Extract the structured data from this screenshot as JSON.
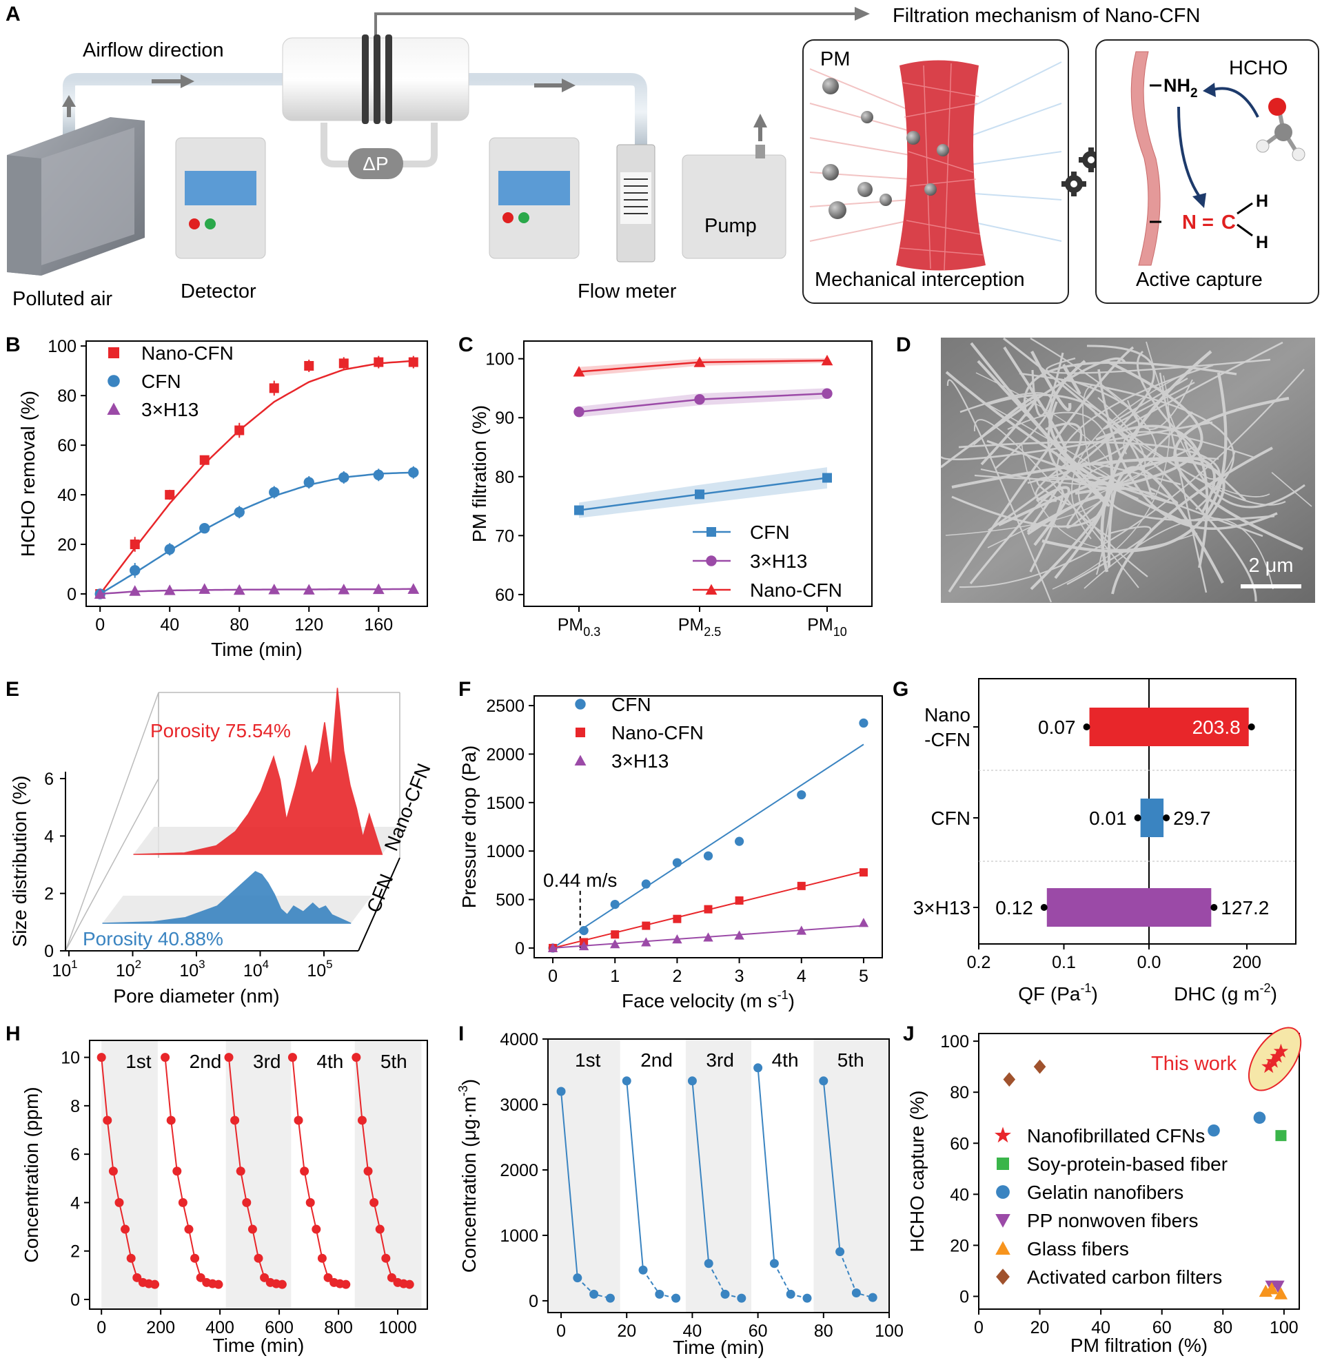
{
  "panels": {
    "A": {
      "label": "A",
      "airflow": "Airflow direction",
      "polluted_air": "Polluted air",
      "detector": "Detector",
      "flow_meter": "Flow meter",
      "pump": "Pump",
      "dp": "ΔP",
      "mechanism_title": "Filtration mechanism of Nano-CFN",
      "pm": "PM",
      "mechanical": "Mechanical interception",
      "active": "Active capture",
      "hcho": "HCHO",
      "nh2": "NH",
      "nh2_sub": "2",
      "n_atom": "N",
      "eq": "=",
      "c_atom": "C",
      "h1": "H",
      "h2": "H"
    },
    "D": {
      "label": "D",
      "scale_bar": "2 μm"
    }
  },
  "colors": {
    "red": "#e8262a",
    "blue": "#3a84c1",
    "purple": "#9b4aa7",
    "green": "#3ab54a",
    "orange": "#f7941d",
    "brown": "#a0522d",
    "grey_band": "#efefef"
  },
  "chart_data": [
    {
      "panel": "B",
      "type": "line",
      "xlabel": "Time (min)",
      "ylabel": "HCHO removal (%)",
      "xlim": [
        -8,
        188
      ],
      "ylim": [
        -5,
        102
      ],
      "xticks": [
        0,
        40,
        80,
        120,
        160
      ],
      "yticks": [
        0,
        20,
        40,
        60,
        80,
        100
      ],
      "series": [
        {
          "name": "Nano-CFN",
          "marker": "square",
          "x": [
            0,
            20,
            40,
            60,
            80,
            100,
            120,
            140,
            160,
            180
          ],
          "y": [
            0,
            20,
            40,
            54,
            66,
            83,
            92,
            93,
            93.5,
            93.5
          ],
          "err": [
            0,
            3,
            2,
            1.5,
            3,
            3,
            2.5,
            2.5,
            2.5,
            2.5
          ],
          "fit": [
            0,
            18.5,
            36.5,
            52.5,
            66,
            77.5,
            85.5,
            90.5,
            93,
            94
          ]
        },
        {
          "name": "CFN",
          "marker": "circle",
          "x": [
            0,
            20,
            40,
            60,
            80,
            100,
            120,
            140,
            160,
            180
          ],
          "y": [
            0,
            9.5,
            18,
            26.5,
            33,
            41,
            45,
            47,
            48,
            49
          ],
          "err": [
            0,
            3,
            2.5,
            1.5,
            2.5,
            2.5,
            2.5,
            2.5,
            2.5,
            2.5
          ],
          "fit": [
            0,
            8.5,
            17.5,
            26,
            33.5,
            39.5,
            44,
            47,
            48.5,
            49
          ]
        },
        {
          "name": "3×H13",
          "marker": "triangle",
          "x": [
            0,
            20,
            40,
            60,
            80,
            100,
            120,
            140,
            160,
            180
          ],
          "y": [
            0,
            1.2,
            1.5,
            2,
            1.6,
            1.8,
            1.7,
            1.8,
            1.9,
            2
          ],
          "err": [
            0,
            0,
            0,
            0,
            0,
            0,
            0,
            0,
            0,
            0
          ],
          "fit": [
            0,
            1,
            1.4,
            1.6,
            1.7,
            1.8,
            1.8,
            1.9,
            1.9,
            2
          ]
        }
      ]
    },
    {
      "panel": "C",
      "type": "line",
      "xlabel": "",
      "ylabel": "PM filtration (%)",
      "categories": [
        "PM",
        "PM",
        "PM"
      ],
      "category_subs": [
        "0.3",
        "2.5",
        "10"
      ],
      "ylim": [
        58,
        103
      ],
      "yticks": [
        60,
        70,
        80,
        90,
        100
      ],
      "legend": "bottom-right",
      "series": [
        {
          "name": "CFN",
          "marker": "square",
          "values": [
            74.3,
            77,
            79.8
          ],
          "band": [
            1.3,
            1.6,
            1.8
          ]
        },
        {
          "name": "3×H13",
          "marker": "circle",
          "values": [
            91,
            93.1,
            94.1
          ],
          "band": [
            0.9,
            1,
            0.9
          ]
        },
        {
          "name": "Nano-CFN",
          "marker": "triangle",
          "values": [
            97.8,
            99.4,
            99.7
          ],
          "band": [
            0.8,
            0.6,
            0.4
          ]
        }
      ]
    },
    {
      "panel": "E",
      "type": "area",
      "xlabel": "Pore diameter (nm)",
      "ylabel": "Size distribution (%)",
      "xticks": [
        "10",
        "10",
        "10",
        "10",
        "10"
      ],
      "xtick_exps": [
        "1",
        "2",
        "3",
        "4",
        "5"
      ],
      "yticks": [
        0,
        2,
        4,
        6
      ],
      "series": [
        {
          "name": "CFN",
          "annotation": "Porosity 40.88%",
          "log_x": [
            1.2,
            2,
            2.5,
            3,
            3.3,
            3.5,
            3.6,
            3.7,
            3.8,
            3.9,
            4,
            4.1,
            4.2,
            4.35,
            4.5,
            4.6,
            4.7,
            4.8,
            4.9,
            5.1
          ],
          "y": [
            0,
            0.05,
            0.2,
            0.6,
            1.2,
            1.6,
            1.8,
            1.7,
            1.4,
            1.0,
            0.5,
            0.3,
            0.6,
            0.4,
            0.7,
            0.5,
            0.6,
            0.3,
            0.2,
            0
          ]
        },
        {
          "name": "Nano-CFN",
          "annotation": "Porosity 75.54%",
          "log_x": [
            1.2,
            2,
            2.5,
            2.8,
            3,
            3.2,
            3.4,
            3.5,
            3.6,
            3.75,
            3.9,
            4,
            4.1,
            4.2,
            4.3,
            4.4,
            4.5,
            4.6,
            4.7,
            4.8,
            4.9,
            5.1
          ],
          "y": [
            0,
            0.05,
            0.3,
            0.8,
            1.4,
            2.2,
            3.4,
            2.6,
            1.2,
            2.4,
            3.8,
            2.8,
            3.2,
            4.6,
            3.0,
            5.8,
            3.6,
            2.4,
            1.6,
            0.6,
            1.4,
            0
          ]
        }
      ]
    },
    {
      "panel": "F",
      "type": "scatter",
      "xlabel": "Face velocity (m s",
      "xlabel_sup": "-1",
      "xlabel_end": ")",
      "ylabel": "Pressure drop (Pa)",
      "xlim": [
        -0.3,
        5.3
      ],
      "ylim": [
        -100,
        2600
      ],
      "xticks": [
        0,
        1,
        2,
        3,
        4,
        5
      ],
      "yticks": [
        0,
        500,
        1000,
        1500,
        2000,
        2500
      ],
      "annotation": "0.44 m/s",
      "vline_x": 0.44,
      "series": [
        {
          "name": "CFN",
          "marker": "circle",
          "x": [
            0,
            0.5,
            1,
            1.5,
            2,
            2.5,
            3,
            4,
            5
          ],
          "y": [
            0,
            180,
            450,
            660,
            880,
            950,
            1100,
            1580,
            2320
          ],
          "fit_slope": 420
        },
        {
          "name": "Nano-CFN",
          "marker": "square",
          "x": [
            0,
            0.5,
            1,
            1.5,
            2,
            2.5,
            3,
            4,
            5
          ],
          "y": [
            0,
            60,
            140,
            230,
            300,
            400,
            490,
            640,
            780
          ],
          "fit_slope": 158
        },
        {
          "name": "3×H13",
          "marker": "triangle",
          "x": [
            0,
            0.5,
            1,
            1.5,
            2,
            2.5,
            3,
            4,
            5
          ],
          "y": [
            0,
            20,
            40,
            60,
            90,
            110,
            130,
            180,
            260
          ],
          "fit_slope": 46
        }
      ]
    },
    {
      "panel": "G",
      "type": "bar",
      "categories": [
        "Nano\n-CFN",
        "CFN",
        "3×H13"
      ],
      "category_lines": [
        [
          "Nano",
          "-CFN"
        ],
        [
          "CFN"
        ],
        [
          "3×H13"
        ]
      ],
      "qf": [
        0.07,
        0.01,
        0.12
      ],
      "qf_labels": [
        "0.07",
        "0.01",
        "0.12"
      ],
      "dhc": [
        203.8,
        29.7,
        127.2
      ],
      "dhc_labels": [
        "203.8",
        "29.7",
        "127.2"
      ],
      "xlabel_left": "QF (Pa",
      "xlabel_left_sup": "-1",
      "xlabel_left_end": ")",
      "xlabel_right": "DHC (g m",
      "xlabel_right_sup": "-2",
      "xlabel_right_end": ")",
      "xticks_left": [
        "0.2",
        "0.1",
        "0.0"
      ],
      "xticks_left_vals": [
        0.2,
        0.1,
        0.0
      ],
      "xticks_right": [
        "200"
      ],
      "xticks_right_vals": [
        200
      ],
      "qf_max": 0.2,
      "dhc_max": 300
    },
    {
      "panel": "H",
      "type": "line",
      "xlabel": "Time (min)",
      "ylabel": "Concentration (ppm)",
      "xlim": [
        -40,
        1100
      ],
      "ylim": [
        -0.4,
        10.7
      ],
      "xticks": [
        0,
        200,
        400,
        600,
        800,
        1000
      ],
      "yticks": [
        0,
        2,
        4,
        6,
        8,
        10
      ],
      "cycle_labels": [
        "1st",
        "2nd",
        "3rd",
        "4th",
        "5th"
      ],
      "cycle_bands": [
        [
          0,
          190
        ],
        [
          420,
          640
        ],
        [
          855,
          1080
        ]
      ],
      "cycle_starts": [
        0,
        215,
        430,
        645,
        860
      ],
      "cycle_y": [
        10,
        7.4,
        5.3,
        4.0,
        2.9,
        1.7,
        0.9,
        0.7,
        0.65,
        0.62
      ],
      "cycle_dx": 20
    },
    {
      "panel": "I",
      "type": "line",
      "xlabel": "Time (min)",
      "ylabel": "Concentration (μg·m",
      "ylabel_sup": "-3",
      "ylabel_end": ")",
      "xlim": [
        -4,
        100
      ],
      "ylim": [
        -180,
        4000
      ],
      "xticks": [
        0,
        20,
        40,
        60,
        80,
        100
      ],
      "yticks": [
        0,
        1000,
        2000,
        3000,
        4000
      ],
      "cycle_labels": [
        "1st",
        "2nd",
        "3rd",
        "4th",
        "5th"
      ],
      "cycle_bands": [
        [
          -4,
          18
        ],
        [
          38,
          58
        ],
        [
          77,
          100
        ]
      ],
      "cycles": [
        {
          "x": [
            0,
            5,
            10,
            15
          ],
          "y": [
            3200,
            350,
            100,
            40
          ]
        },
        {
          "x": [
            20,
            25,
            30,
            35
          ],
          "y": [
            3360,
            470,
            100,
            40
          ]
        },
        {
          "x": [
            40,
            45,
            50,
            55
          ],
          "y": [
            3360,
            570,
            100,
            40
          ]
        },
        {
          "x": [
            60,
            65,
            70,
            75
          ],
          "y": [
            3560,
            570,
            100,
            40
          ]
        },
        {
          "x": [
            80,
            85,
            90,
            95
          ],
          "y": [
            3360,
            750,
            120,
            50
          ]
        }
      ]
    },
    {
      "panel": "J",
      "type": "scatter",
      "xlabel": "PM filtration (%)",
      "ylabel": "HCHO capture (%)",
      "xlim": [
        0,
        105
      ],
      "ylim": [
        -5,
        103
      ],
      "xticks": [
        0,
        20,
        40,
        60,
        80,
        100
      ],
      "yticks": [
        0,
        20,
        40,
        60,
        80,
        100
      ],
      "annotation": "This work",
      "series": [
        {
          "name": "Nanofibrillated CFNs",
          "marker": "star",
          "x": [
            95,
            96.5,
            97.8,
            99
          ],
          "y": [
            90,
            92,
            94,
            96
          ]
        },
        {
          "name": "Soy-protein-based fiber",
          "marker": "square",
          "x": [
            99
          ],
          "y": [
            63
          ]
        },
        {
          "name": "Gelatin nanofibers",
          "marker": "circle",
          "x": [
            77,
            92
          ],
          "y": [
            65,
            70
          ]
        },
        {
          "name": "PP nonwoven fibers",
          "marker": "inv-triangle",
          "x": [
            96,
            98
          ],
          "y": [
            4,
            4
          ]
        },
        {
          "name": "Glass fibers",
          "marker": "triangle",
          "x": [
            94,
            96,
            99
          ],
          "y": [
            2,
            3,
            1
          ]
        },
        {
          "name": "Activated carbon filters",
          "marker": "diamond",
          "x": [
            10,
            20
          ],
          "y": [
            85,
            90
          ]
        }
      ]
    }
  ]
}
